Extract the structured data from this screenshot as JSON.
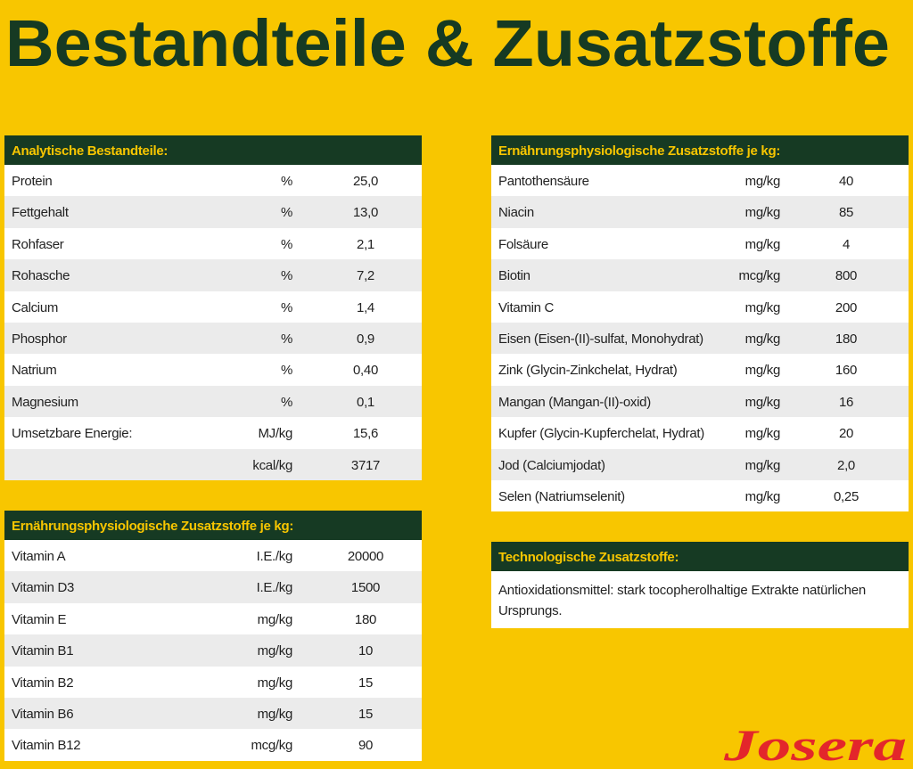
{
  "title": "Bestandteile & Zusatzstoffe",
  "tables": [
    {
      "header": "Analytische Bestandteile:",
      "rows": [
        [
          "Protein",
          "%",
          "25,0"
        ],
        [
          "Fettgehalt",
          "%",
          "13,0"
        ],
        [
          "Rohfaser",
          "%",
          "2,1"
        ],
        [
          "Rohasche",
          "%",
          "7,2"
        ],
        [
          "Calcium",
          "%",
          "1,4"
        ],
        [
          "Phosphor",
          "%",
          "0,9"
        ],
        [
          "Natrium",
          "%",
          "0,40"
        ],
        [
          "Magnesium",
          "%",
          "0,1"
        ],
        [
          "Umsetzbare Energie:",
          "MJ/kg",
          "15,6"
        ],
        [
          null,
          "kcal/kg",
          "3717"
        ]
      ]
    },
    {
      "header": "Ernährungsphysiologische Zusatzstoffe je kg:",
      "rows": [
        [
          "Vitamin A",
          "I.E./kg",
          "20000"
        ],
        [
          "Vitamin D3",
          "I.E./kg",
          "1500"
        ],
        [
          "Vitamin E",
          "mg/kg",
          "180"
        ],
        [
          "Vitamin B1",
          "mg/kg",
          "10"
        ],
        [
          "Vitamin B2",
          "mg/kg",
          "15"
        ],
        [
          "Vitamin B6",
          "mg/kg",
          "15"
        ],
        [
          "Vitamin B12",
          "mcg/kg",
          "90"
        ]
      ]
    },
    {
      "header": "Ernährungsphysiologische Zusatzstoffe je kg:",
      "rows": [
        [
          "Pantothensäure",
          "mg/kg",
          "40"
        ],
        [
          "Niacin",
          "mg/kg",
          "85"
        ],
        [
          "Folsäure",
          "mg/kg",
          "4"
        ],
        [
          "Biotin",
          "mcg/kg",
          "800"
        ],
        [
          "Vitamin C",
          "mg/kg",
          "200"
        ],
        [
          "Eisen (Eisen-(II)-sulfat, Monohydrat)",
          "mg/kg",
          "180"
        ],
        [
          "Zink (Glycin-Zinkchelat, Hydrat)",
          "mg/kg",
          "160"
        ],
        [
          "Mangan (Mangan-(II)-oxid)",
          "mg/kg",
          "16"
        ],
        [
          "Kupfer (Glycin-Kupferchelat, Hydrat)",
          "mg/kg",
          "20"
        ],
        [
          "Jod (Calciumjodat)",
          "mg/kg",
          "2,0"
        ],
        [
          "Selen (Natriumselenit)",
          "mg/kg",
          "0,25"
        ]
      ]
    }
  ],
  "note": {
    "header": "Technologische Zusatzstoffe:",
    "text": "Antioxidationsmittel: stark tocopherolhaltige Extrakte natürlichen Ursprungs."
  },
  "logo": "Josera"
}
